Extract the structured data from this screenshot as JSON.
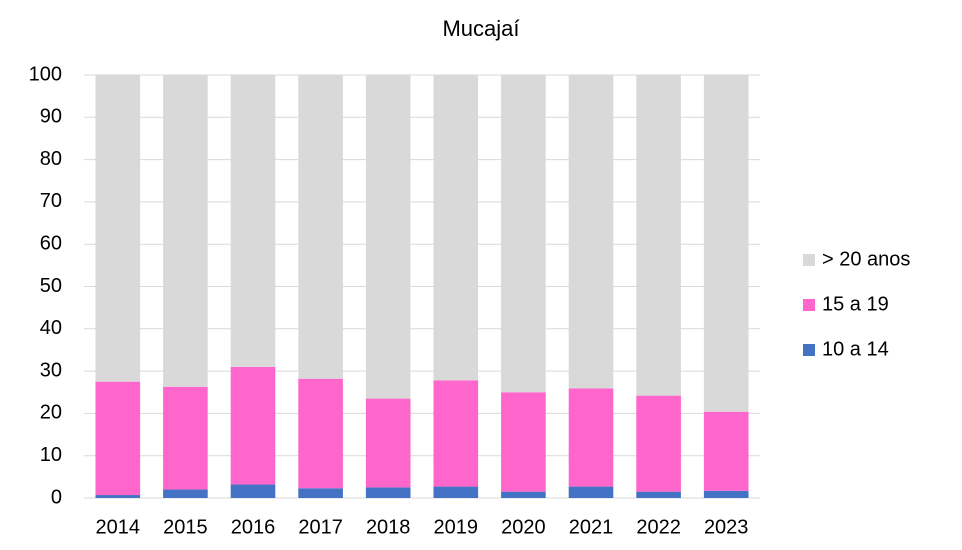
{
  "chart_data": {
    "type": "stacked_bar",
    "title": "Mucajaí",
    "categories": [
      "2014",
      "2015",
      "2016",
      "2017",
      "2018",
      "2019",
      "2020",
      "2021",
      "2022",
      "2023"
    ],
    "series": [
      {
        "name": "10 a 14",
        "color": "#4472c4",
        "values": [
          0.7,
          2.0,
          3.2,
          2.3,
          2.5,
          2.7,
          1.5,
          2.7,
          1.5,
          1.7
        ]
      },
      {
        "name": "15 a 19",
        "color": "#ff66cc",
        "values": [
          26.8,
          24.3,
          27.8,
          25.9,
          21.0,
          25.1,
          23.5,
          23.2,
          22.7,
          18.7
        ]
      },
      {
        "name": "> 20 anos",
        "color": "#d9d9d9",
        "values": [
          72.5,
          73.7,
          69.0,
          71.8,
          76.5,
          72.2,
          75.0,
          74.1,
          75.8,
          79.6
        ]
      }
    ],
    "ylim": [
      0,
      100
    ],
    "yticks": [
      0,
      10,
      20,
      30,
      40,
      50,
      60,
      70,
      80,
      90,
      100
    ],
    "grid": true,
    "legend": "right"
  }
}
